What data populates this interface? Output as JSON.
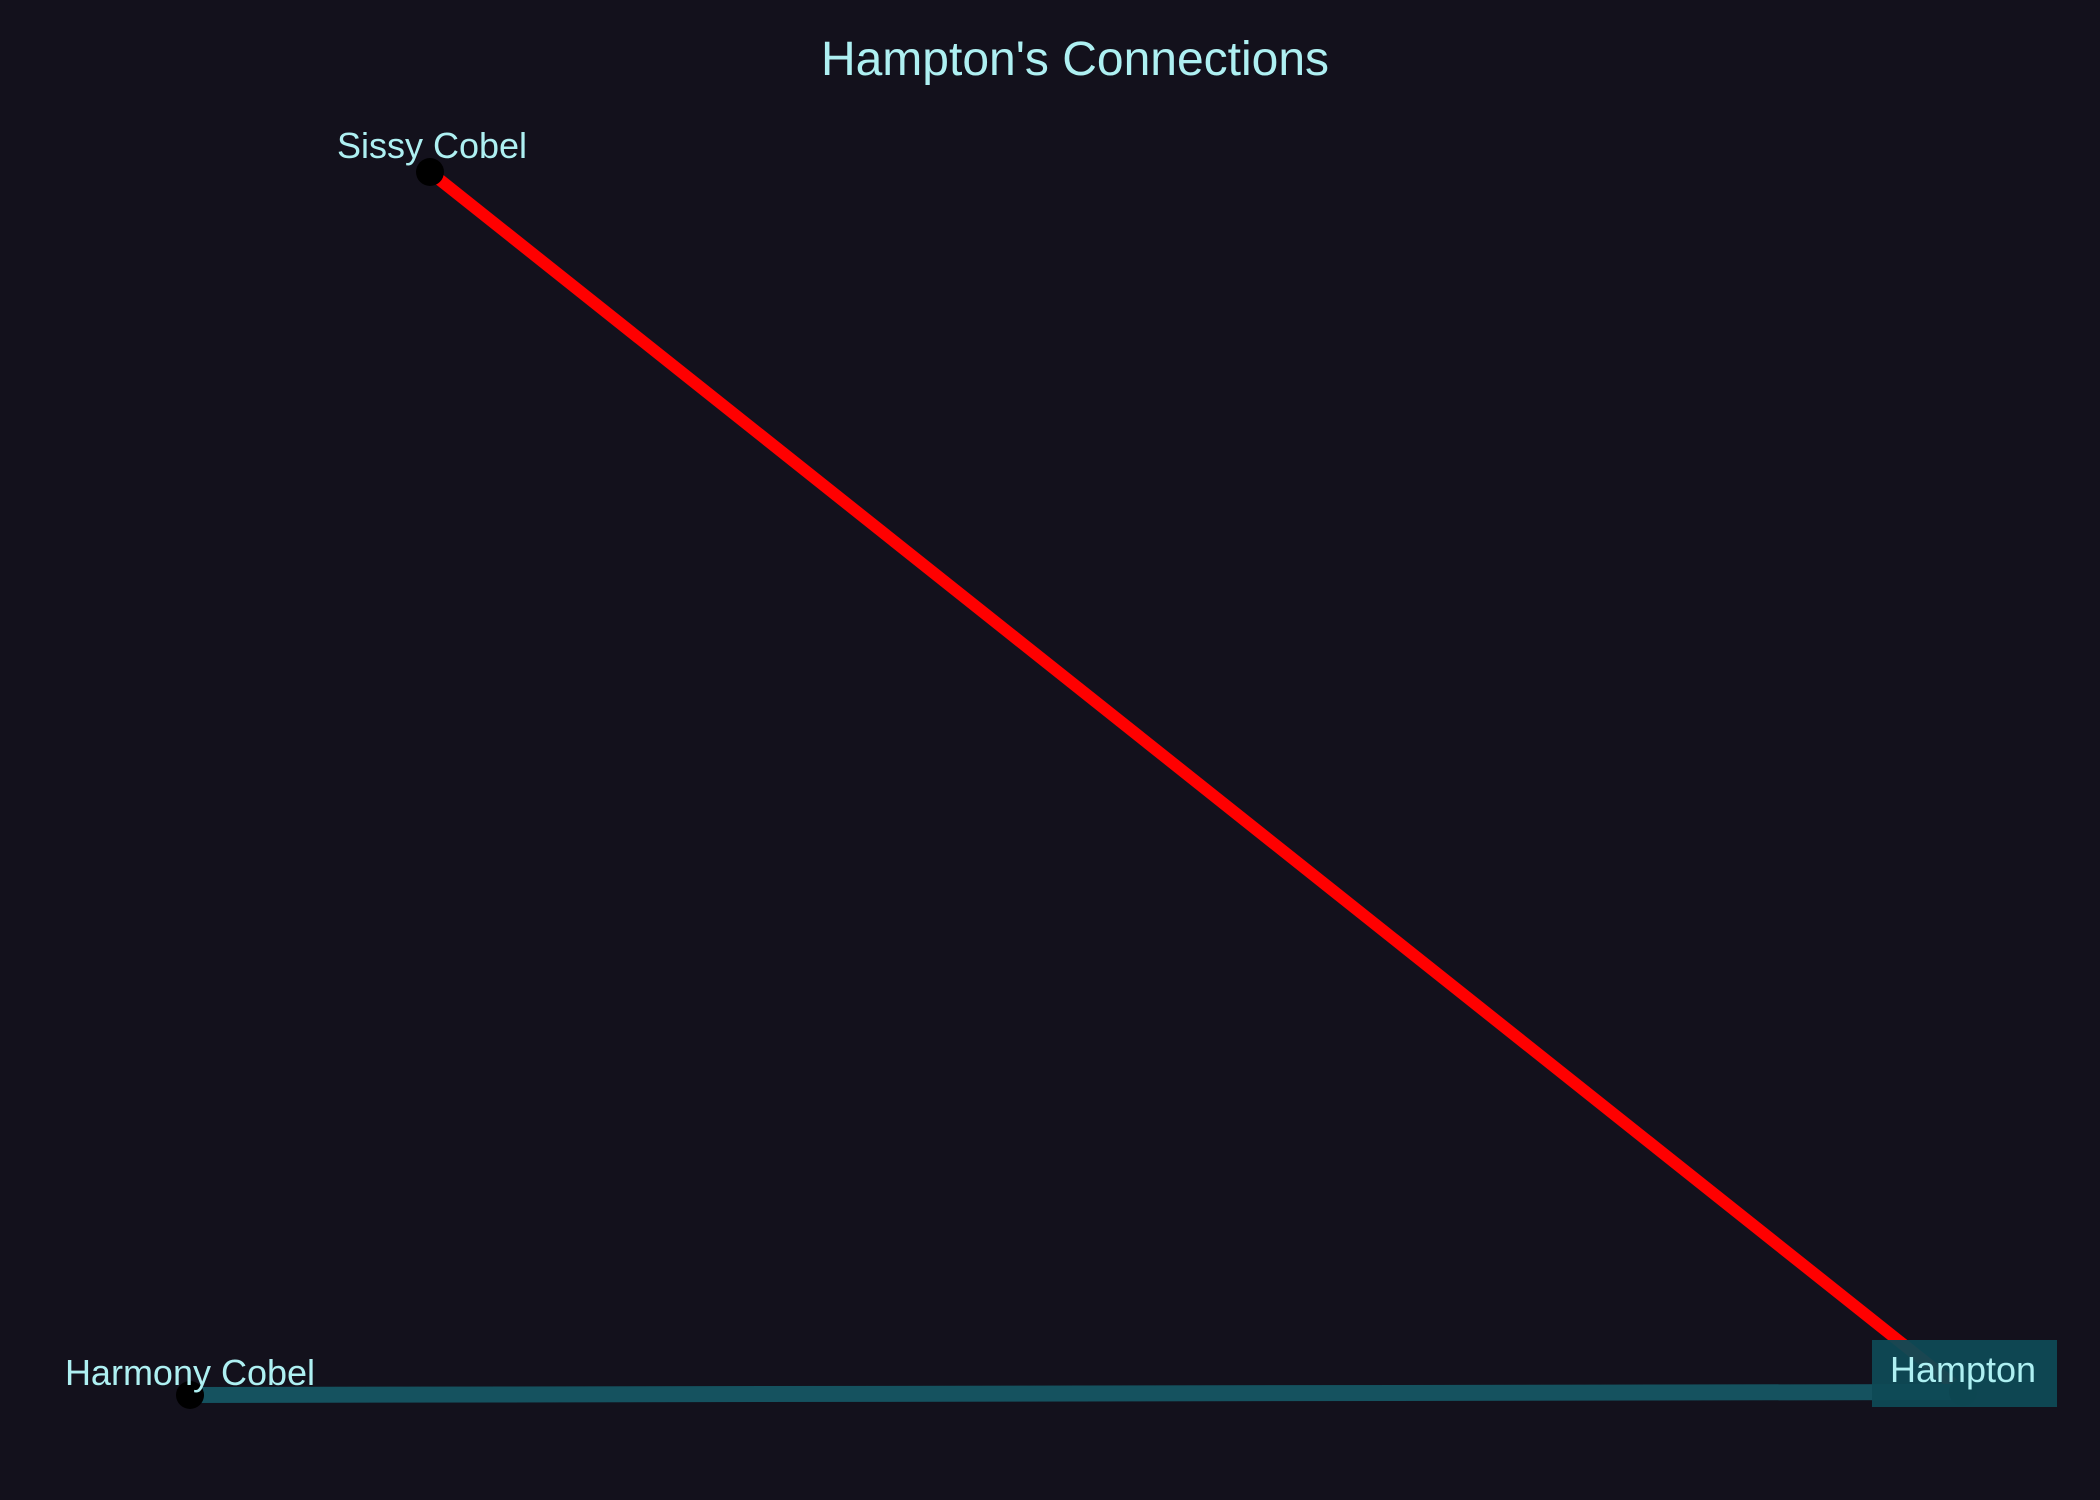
{
  "title": "Hampton's Connections",
  "colors": {
    "background": "#13111c",
    "text": "#aef0f2",
    "edge_strong": "#ff0000",
    "edge_weak": "#15525f",
    "label_highlight_bg": "#0e4a55",
    "node": "#000000"
  },
  "nodes": [
    {
      "id": "sissy",
      "label": "Sissy Cobel"
    },
    {
      "id": "harmony",
      "label": "Harmony Cobel"
    },
    {
      "id": "hampton",
      "label": "Hampton",
      "highlighted": true
    }
  ],
  "edges": [
    {
      "source": "hampton",
      "target": "sissy",
      "color": "#ff0000"
    },
    {
      "source": "hampton",
      "target": "harmony",
      "color": "#15525f"
    }
  ]
}
